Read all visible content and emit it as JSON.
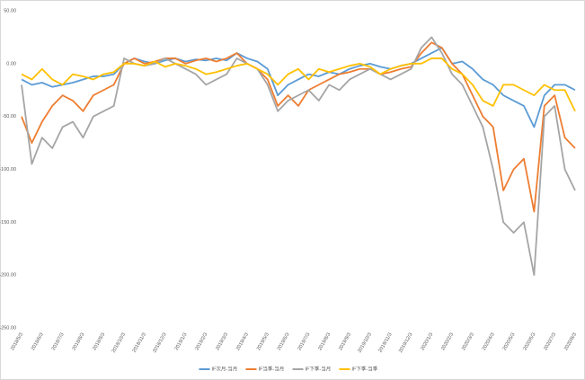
{
  "chart_data": {
    "type": "line",
    "categories": [
      "2018/5/3",
      null,
      "2018/6/3",
      null,
      "2018/7/3",
      null,
      "2018/8/3",
      null,
      "2018/9/3",
      null,
      "2018/10/3",
      null,
      "2018/11/3",
      null,
      "2018/12/3",
      null,
      "2019/1/3",
      null,
      "2019/2/3",
      null,
      "2019/3/3",
      null,
      "2019/4/3",
      null,
      "2019/5/3",
      null,
      "2019/6/3",
      null,
      "2019/7/3",
      null,
      "2019/8/3",
      null,
      "2019/9/3",
      null,
      "2019/10/3",
      null,
      "2019/11/3",
      null,
      "2019/12/3",
      null,
      "2020/1/3",
      null,
      "2020/2/3",
      null,
      "2020/3/3",
      null,
      "2020/4/3",
      null,
      "2020/5/3",
      null,
      "2020/6/3",
      null,
      "2020/7/3",
      null,
      "2020/8/3"
    ],
    "series": [
      {
        "name": "IF次月-当月",
        "color": "#5b9bd5",
        "values": [
          -15,
          -20,
          -18,
          -22,
          -20,
          -18,
          -15,
          -12,
          -12,
          -10,
          0,
          5,
          2,
          0,
          3,
          5,
          2,
          4,
          3,
          5,
          3,
          10,
          5,
          2,
          -5,
          -30,
          -20,
          -15,
          -10,
          -12,
          -8,
          -10,
          -5,
          -2,
          0,
          -3,
          -5,
          -2,
          0,
          5,
          10,
          15,
          0,
          2,
          -5,
          -15,
          -20,
          -30,
          -35,
          -40,
          -60,
          -30,
          -20,
          -20,
          -25
        ]
      },
      {
        "name": "IF当季-当月",
        "color": "#ed7d31",
        "values": [
          -50,
          -75,
          -55,
          -40,
          -30,
          -35,
          -45,
          -30,
          -25,
          -20,
          0,
          5,
          0,
          2,
          5,
          5,
          0,
          3,
          5,
          2,
          5,
          10,
          0,
          -5,
          -15,
          -40,
          -30,
          -40,
          -25,
          -20,
          -15,
          -10,
          -8,
          -5,
          -5,
          -10,
          -8,
          -5,
          -3,
          10,
          20,
          15,
          0,
          -10,
          -30,
          -50,
          -60,
          -120,
          -100,
          -90,
          -140,
          -40,
          -30,
          -70,
          -80
        ]
      },
      {
        "name": "IF下季-当月",
        "color": "#a5a5a5",
        "values": [
          -20,
          -95,
          -70,
          -80,
          -60,
          -55,
          -70,
          -50,
          -45,
          -40,
          5,
          0,
          -2,
          0,
          5,
          0,
          -5,
          -10,
          -20,
          -15,
          -10,
          5,
          0,
          -5,
          -20,
          -45,
          -35,
          -30,
          -25,
          -35,
          -20,
          -25,
          -15,
          -10,
          -5,
          -10,
          -15,
          -10,
          -5,
          15,
          25,
          10,
          -10,
          -20,
          -40,
          -60,
          -100,
          -150,
          -160,
          -150,
          -200,
          -50,
          -40,
          -100,
          -120
        ]
      },
      {
        "name": "IF下季-当季",
        "color": "#ffc000",
        "values": [
          -10,
          -15,
          -5,
          -15,
          -20,
          -10,
          -12,
          -15,
          -10,
          -8,
          0,
          0,
          -2,
          2,
          -3,
          0,
          -2,
          -5,
          -10,
          -8,
          -5,
          -2,
          0,
          -5,
          -10,
          -20,
          -10,
          -5,
          -15,
          -5,
          -8,
          -5,
          -2,
          0,
          -3,
          -10,
          -5,
          -2,
          0,
          0,
          5,
          5,
          -5,
          -10,
          -20,
          -35,
          -40,
          -20,
          -20,
          -25,
          -30,
          -20,
          -25,
          -25,
          -45
        ]
      }
    ],
    "ylim": [
      -250,
      50
    ],
    "yticks": [
      {
        "value": 50,
        "label": "50.00"
      },
      {
        "value": 0,
        "label": "0.00"
      },
      {
        "value": -50,
        "label": "-50.00"
      },
      {
        "value": -100,
        "label": "-100.00"
      },
      {
        "value": -150,
        "label": "-150.00"
      },
      {
        "value": -200,
        "label": "-200.00"
      },
      {
        "value": -250,
        "label": "-250.00"
      }
    ],
    "grid": false,
    "legend": "bottom"
  }
}
